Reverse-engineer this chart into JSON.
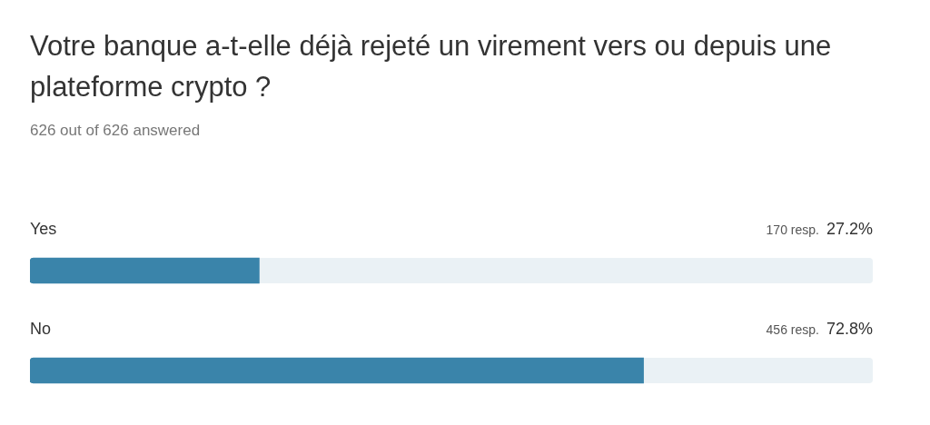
{
  "chart_data": {
    "type": "bar",
    "orientation": "horizontal",
    "title": "Votre banque a-t-elle déjà rejeté un virement vers ou depuis une plateforme crypto ?",
    "subtitle": "626 out of 626 answered",
    "categories": [
      "Yes",
      "No"
    ],
    "values": [
      27.2,
      72.8
    ],
    "color": "#3a84aa",
    "value_labels": [
      "27.2%",
      "72.8%"
    ],
    "annotations": [
      "170 resp.",
      "456 resp."
    ],
    "xlim": [
      0,
      100
    ],
    "tick_labels": false,
    "legend": false
  }
}
